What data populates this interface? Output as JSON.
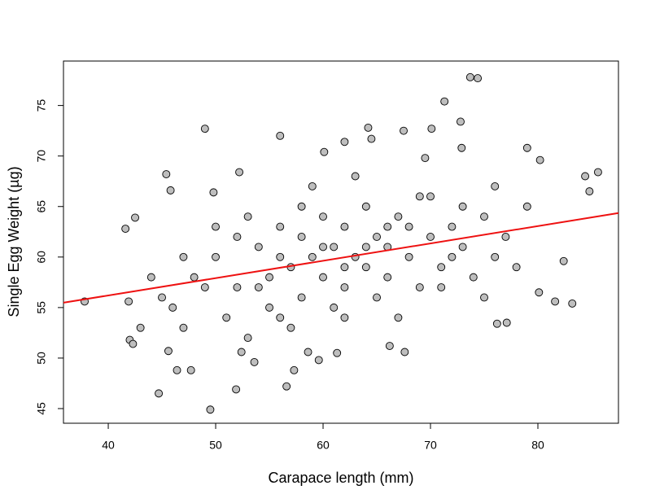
{
  "chart_data": {
    "type": "scatter",
    "x_label": "Carapace length (mm)",
    "y_label": "Single Egg Weight (µg)",
    "xlim": [
      35.83,
      87.5
    ],
    "ylim": [
      43.55,
      79.4
    ],
    "xticks": [
      40,
      50,
      60,
      70,
      80
    ],
    "yticks": [
      45,
      50,
      55,
      60,
      65,
      70,
      75
    ],
    "point_color": "#bebebe",
    "regression": {
      "color": "#ee1111",
      "intercept": 49.33,
      "slope": 0.1717
    },
    "x": [
      37.8,
      41.6,
      42.5,
      41.9,
      42.0,
      42.3,
      44.7,
      49.5,
      49.0,
      51.9,
      56.0,
      56.6,
      73.7,
      74.4,
      71.3,
      72.8,
      64.2,
      67.5,
      70.1,
      72.9,
      79.0,
      80.2,
      84.4,
      85.6,
      84.8,
      82.4,
      83.2,
      81.6,
      80.1,
      76.2,
      77.1,
      67.6,
      66.2,
      59.6,
      61.3,
      58.6,
      57.3,
      53.6,
      52.4,
      46.4,
      47.7,
      45.6,
      45.4,
      45.8,
      52.2,
      49.8,
      60.1,
      62.0,
      64.5,
      69.5,
      48,
      50,
      52,
      54,
      55,
      56,
      57,
      58,
      58,
      59,
      60,
      60,
      61,
      62,
      62,
      63,
      64,
      64,
      65,
      66,
      66,
      67,
      68,
      69,
      70,
      70,
      71,
      72,
      73,
      74,
      75,
      76,
      77,
      78,
      79,
      46,
      47,
      47,
      49,
      51,
      53,
      53,
      55,
      57,
      59,
      61,
      63,
      65,
      67,
      69,
      71,
      73,
      75,
      44,
      45,
      43,
      50,
      52,
      56,
      60,
      62,
      64,
      66,
      68,
      72,
      76,
      58,
      54,
      56,
      62
    ],
    "y": [
      55.6,
      62.8,
      63.9,
      55.6,
      51.8,
      51.4,
      46.5,
      44.9,
      72.7,
      46.9,
      72.0,
      47.2,
      77.8,
      77.7,
      75.4,
      73.4,
      72.8,
      72.5,
      72.7,
      70.8,
      70.8,
      69.6,
      68.0,
      68.4,
      66.5,
      59.6,
      55.4,
      55.6,
      56.5,
      53.4,
      53.5,
      50.6,
      51.2,
      49.8,
      50.5,
      50.6,
      48.8,
      49.6,
      50.6,
      48.8,
      48.8,
      50.7,
      68.2,
      66.6,
      68.4,
      66.4,
      70.4,
      71.4,
      71.7,
      69.8,
      58,
      60,
      57,
      61,
      55,
      63,
      59,
      56,
      62,
      60,
      58,
      64,
      61,
      57,
      63,
      60,
      59,
      65,
      62,
      58,
      61,
      64,
      60,
      57,
      62,
      66,
      59,
      63,
      61,
      58,
      64,
      60,
      62,
      59,
      65,
      55,
      60,
      53,
      57,
      54,
      52,
      64,
      58,
      53,
      67,
      55,
      68,
      56,
      54,
      66,
      57,
      65,
      56,
      58,
      56,
      53,
      63,
      62,
      60,
      61,
      59,
      61,
      63,
      63,
      60,
      67,
      65,
      57,
      54,
      54
    ]
  }
}
